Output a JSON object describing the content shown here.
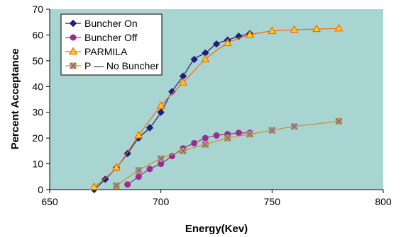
{
  "chart_data": {
    "type": "line",
    "title": "",
    "xlabel": "Energy(Kev)",
    "ylabel": "Percent Acceptance",
    "xlim": [
      650,
      800
    ],
    "ylim": [
      0,
      70
    ],
    "xticks": [
      650,
      700,
      750,
      800
    ],
    "yticks": [
      0,
      10,
      20,
      30,
      40,
      50,
      60,
      70
    ],
    "grid": false,
    "legend_position": "top-left",
    "plot_background": "#a8d5d2",
    "series": [
      {
        "name": "Buncher On",
        "color": "#1f1f7a",
        "marker": "diamond",
        "x": [
          670,
          675,
          680,
          685,
          690,
          695,
          700,
          705,
          710,
          715,
          720,
          725,
          730,
          735,
          740
        ],
        "y": [
          0,
          4,
          8.5,
          14,
          20,
          24,
          30,
          38,
          44,
          50.5,
          53,
          56.5,
          58,
          59.5,
          60.5
        ]
      },
      {
        "name": "Buncher Off",
        "color": "#9b2d8e",
        "marker": "circle",
        "x": [
          685,
          690,
          695,
          700,
          705,
          710,
          715,
          720,
          725,
          730,
          735,
          740
        ],
        "y": [
          2,
          5,
          8,
          10,
          13,
          16,
          18,
          20,
          21,
          21.5,
          22,
          22
        ]
      },
      {
        "name": "PARMILA",
        "color": "#ff6600",
        "marker": "triangle",
        "x": [
          670,
          680,
          690,
          700,
          710,
          720,
          730,
          740,
          750,
          760,
          770,
          780
        ],
        "y": [
          1,
          8.5,
          21,
          32.5,
          41.5,
          50.5,
          56.8,
          60,
          61.5,
          62,
          62.3,
          62.5
        ]
      },
      {
        "name": "P — No Buncher",
        "color": "#c8902a",
        "marker": "square-x",
        "x": [
          680,
          690,
          700,
          710,
          720,
          730,
          740,
          750,
          760,
          780
        ],
        "y": [
          1.5,
          7.5,
          12,
          15,
          17.5,
          20,
          21.5,
          23,
          24.5,
          26.5
        ]
      }
    ]
  }
}
